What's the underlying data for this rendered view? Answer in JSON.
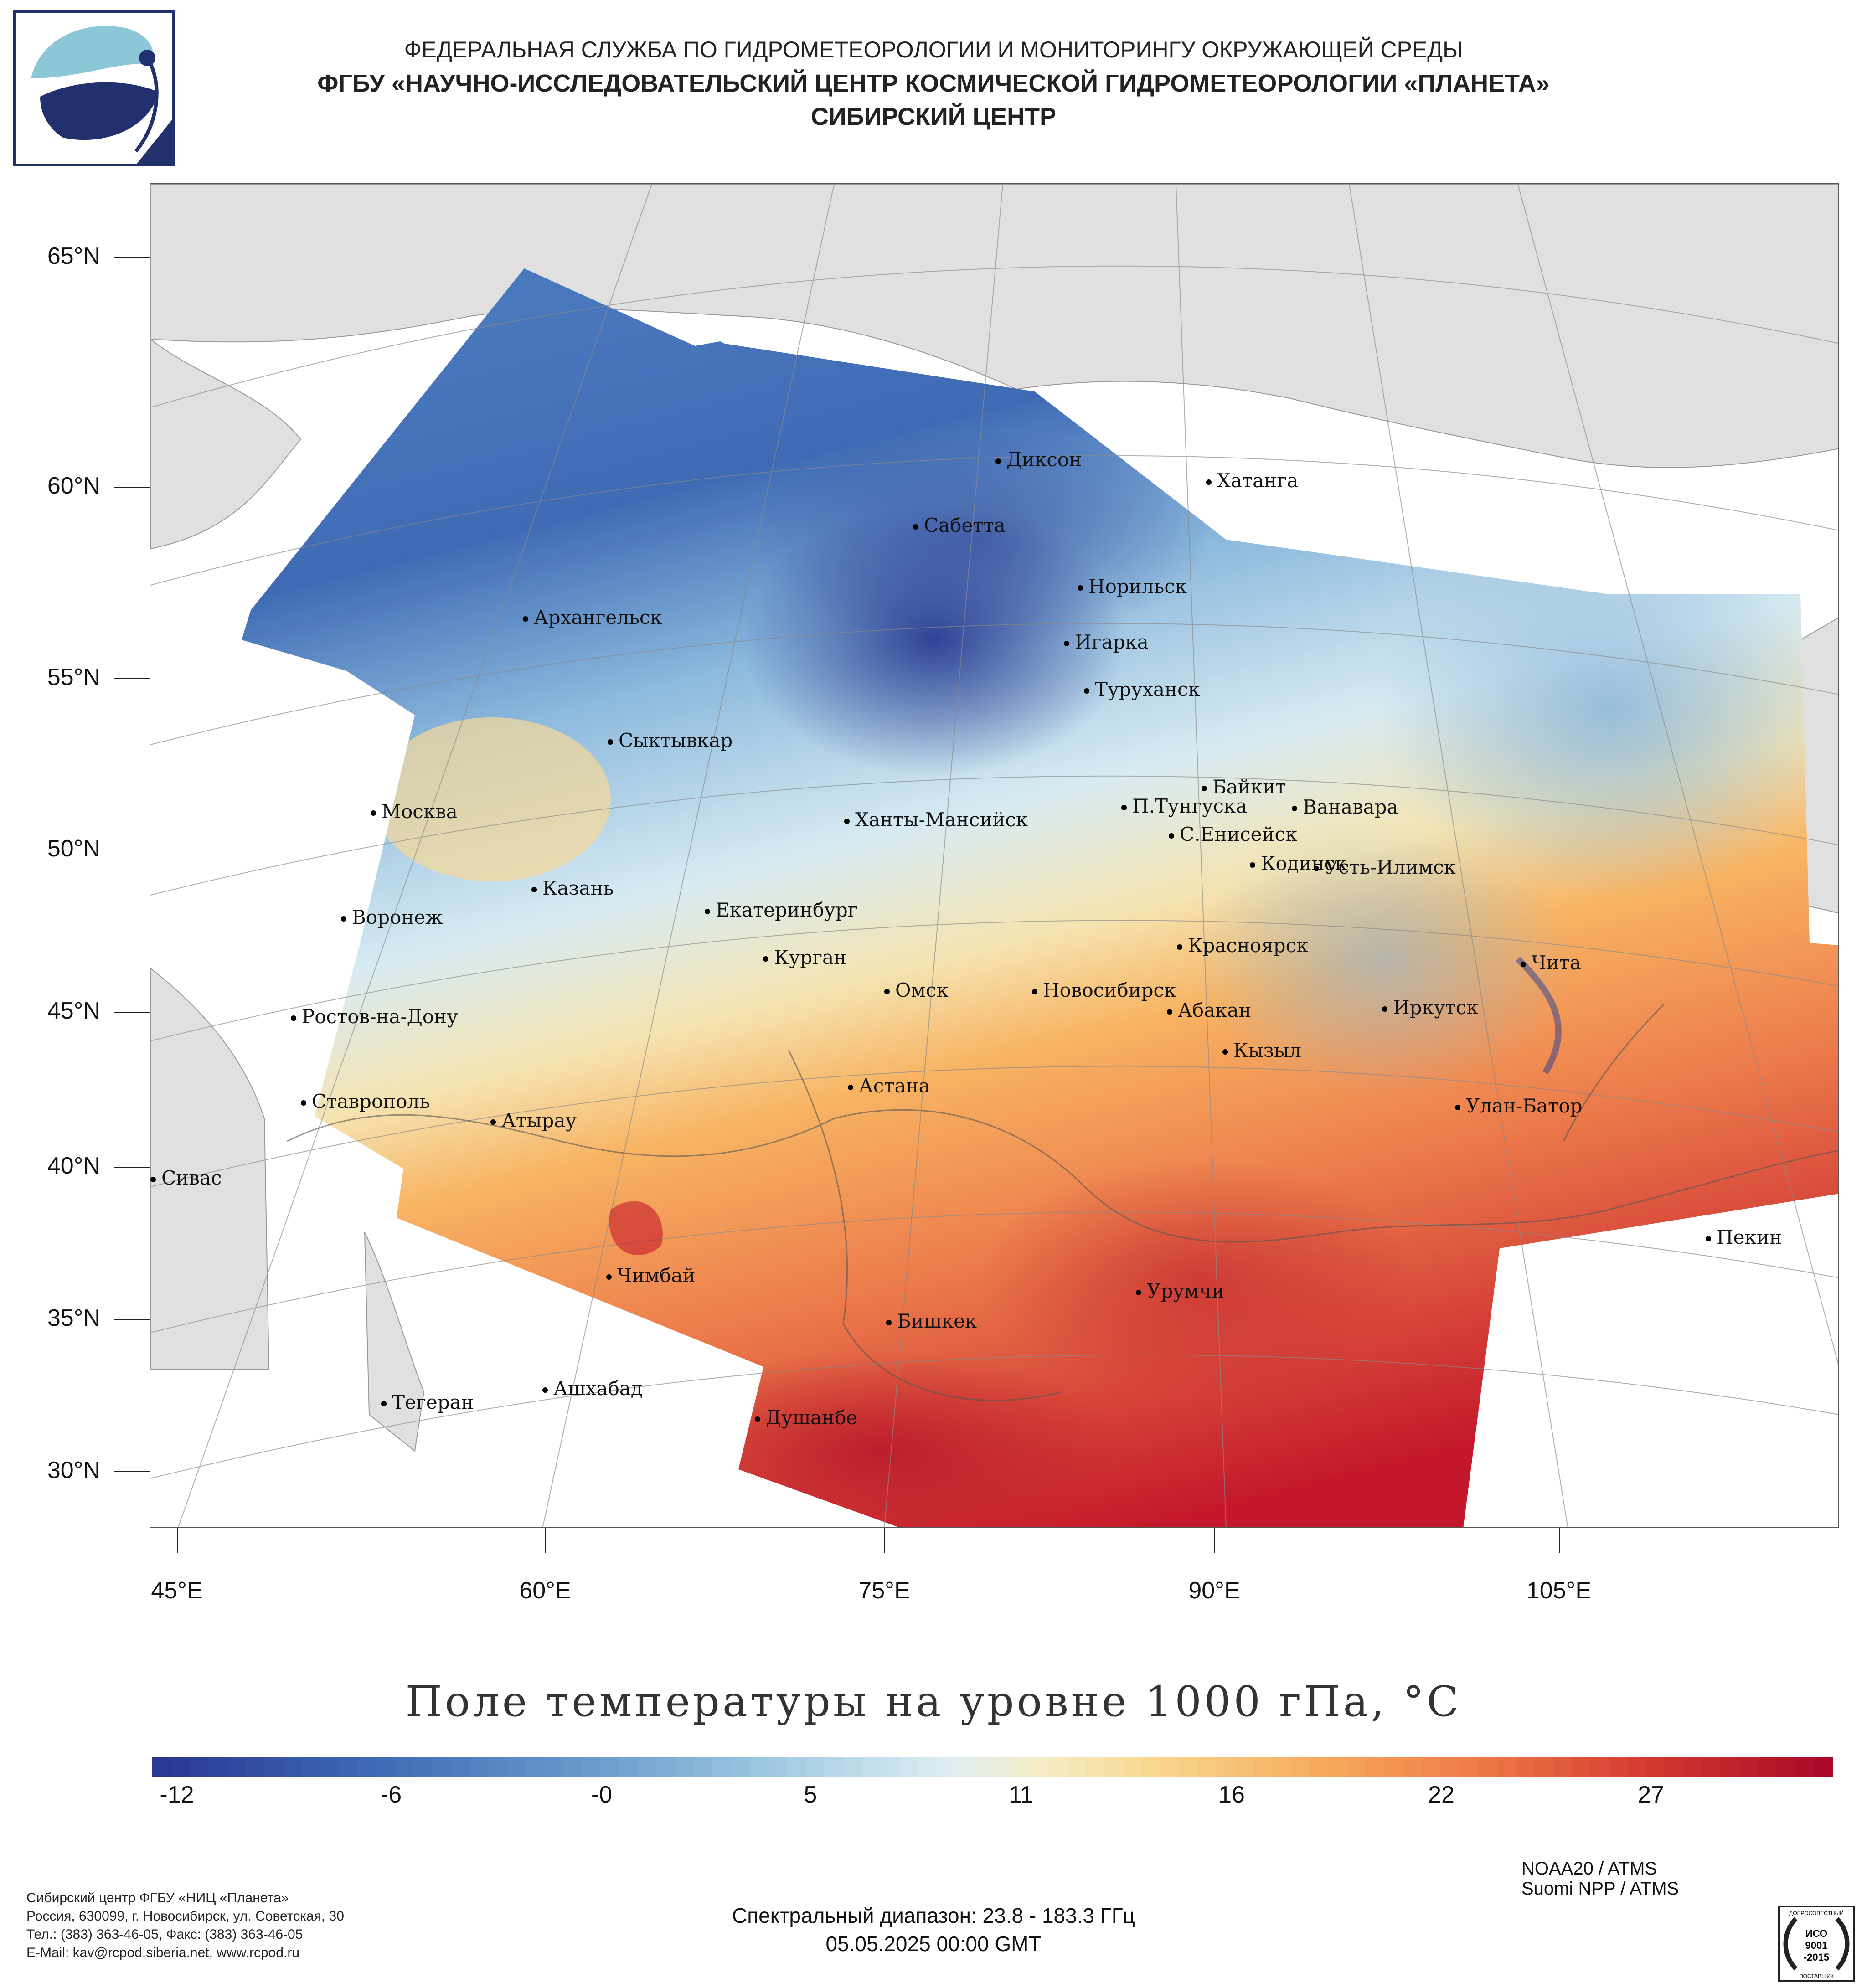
{
  "header": {
    "line1": "ФЕДЕРАЛЬНАЯ СЛУЖБА ПО ГИДРОМЕТЕОРОЛОГИИ И МОНИТОРИНГУ ОКРУЖАЮЩЕЙ СРЕДЫ",
    "line2": "ФГБУ «НАУЧНО-ИССЛЕДОВАТЕЛЬСКИЙ ЦЕНТР КОСМИЧЕСКОЙ ГИДРОМЕТЕОРОЛОГИИ «ПЛАНЕТА»",
    "line3": "СИБИРСКИЙ ЦЕНТР"
  },
  "map": {
    "lat_labels": [
      "65°N",
      "60°N",
      "55°N",
      "50°N",
      "45°N",
      "40°N",
      "35°N",
      "30°N"
    ],
    "lon_labels": [
      "45°E",
      "60°E",
      "75°E",
      "90°E",
      "105°E"
    ],
    "cities": [
      {
        "name": "Диксон"
      },
      {
        "name": "Хатанга"
      },
      {
        "name": "Сабетта"
      },
      {
        "name": "Норильск"
      },
      {
        "name": "Архангельск"
      },
      {
        "name": "Игарка"
      },
      {
        "name": "Туруханск"
      },
      {
        "name": "Сыктывкар"
      },
      {
        "name": "Байкит"
      },
      {
        "name": "Москва"
      },
      {
        "name": "П.Тунгуска"
      },
      {
        "name": "Ванавара"
      },
      {
        "name": "Ханты-Мансийск"
      },
      {
        "name": "С.Енисейск"
      },
      {
        "name": "Кодинск"
      },
      {
        "name": "Усть-Илимск"
      },
      {
        "name": "Казань"
      },
      {
        "name": "Екатеринбург"
      },
      {
        "name": "Воронеж"
      },
      {
        "name": "Красноярск"
      },
      {
        "name": "Курган"
      },
      {
        "name": "Чита"
      },
      {
        "name": "Омск"
      },
      {
        "name": "Новосибирск"
      },
      {
        "name": "Иркутск"
      },
      {
        "name": "Ростов-на-Дону"
      },
      {
        "name": "Абакан"
      },
      {
        "name": "Кызыл"
      },
      {
        "name": "Астана"
      },
      {
        "name": "Ставрополь"
      },
      {
        "name": "Улан-Батор"
      },
      {
        "name": "Атырау"
      },
      {
        "name": "Сивас"
      },
      {
        "name": "Пекин"
      },
      {
        "name": "Чимбай"
      },
      {
        "name": "Урумчи"
      },
      {
        "name": "Бишкек"
      },
      {
        "name": "Ашхабад"
      },
      {
        "name": "Тегеран"
      },
      {
        "name": "Душанбе"
      }
    ],
    "colors": {
      "cold": "#2a3d92",
      "cool": "#6f9fce",
      "neutral": "#eef3ea",
      "warm": "#f8b463",
      "hot": "#c4182a",
      "land": "#e0e0e0"
    }
  },
  "legend": {
    "title": "Поле температуры на уровне 1000 гПа, °C",
    "ticks": [
      "-12",
      "-6",
      "-0",
      "5",
      "11",
      "16",
      "22",
      "27"
    ],
    "range_min": -12,
    "range_max": 33
  },
  "footer": {
    "org_lines": [
      "Сибирский центр ФГБУ «НИЦ «Планета»",
      "Россия, 630099, г. Новосибирск, ул. Советская, 30",
      "Тел.: (383) 363-46-05, Факс: (383) 363-46-05",
      "E-Mail: kav@rcpod.siberia.net, www.rcpod.ru"
    ],
    "sensors": [
      "NOAA20 / ATMS",
      "Suomi NPP / ATMS"
    ],
    "spectral": "Спектральный диапазон: 23.8 - 183.3 ГГц",
    "datetime": "05.05.2025 00:00 GMT",
    "iso_lines": [
      "ДОБРОСОВЕСТНЫЙ",
      "ИСО",
      "9001",
      "-2015",
      "ПОСТАВЩИК"
    ]
  }
}
